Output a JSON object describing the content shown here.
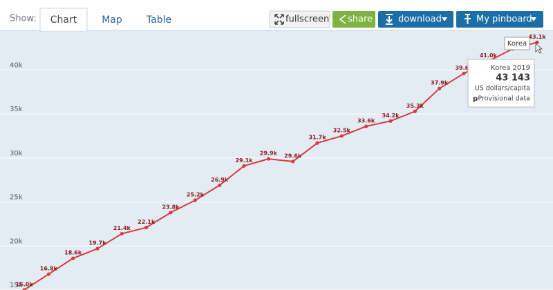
{
  "toolbar": {
    "show_label": "Show:",
    "tabs": [
      "Chart",
      "Map",
      "Table"
    ],
    "fullscreen": "fullscreen",
    "share": "share",
    "download": "download",
    "pinboard": "My pinboard"
  },
  "chart_data": {
    "type": "line",
    "series": [
      {
        "name": "Korea",
        "color": "#d63b3f",
        "values": [
          15000,
          16800,
          18600,
          19700,
          21400,
          22100,
          23800,
          25200,
          26900,
          29100,
          29900,
          29600,
          31700,
          32500,
          33600,
          34200,
          35300,
          37900,
          39600,
          41000,
          42400,
          43143
        ],
        "value_labels": [
          "15.0k",
          "16.8k",
          "18.6k",
          "19.7k",
          "21.4k",
          "22.1k",
          "23.8k",
          "25.2k",
          "26.9k",
          "29.1k",
          "29.9k",
          "29.6k",
          "31.7k",
          "32.5k",
          "33.6k",
          "34.2k",
          "35.3k",
          "37.9k",
          "39.6k",
          "41.0k",
          null,
          "43.1k"
        ]
      }
    ],
    "ylim": [
      15000,
      44500
    ],
    "yticks": [
      {
        "value": 15000,
        "label": "15k"
      },
      {
        "value": 20000,
        "label": "20k"
      },
      {
        "value": 25000,
        "label": "25k"
      },
      {
        "value": 30000,
        "label": "30k"
      },
      {
        "value": 35000,
        "label": "35k"
      },
      {
        "value": 40000,
        "label": "40k"
      }
    ],
    "grid": true,
    "tooltip": {
      "title": "Korea 2019",
      "value": "43 143",
      "unit": "US dollars/capita",
      "flag": "p",
      "flag_text": "Provisional data"
    }
  }
}
